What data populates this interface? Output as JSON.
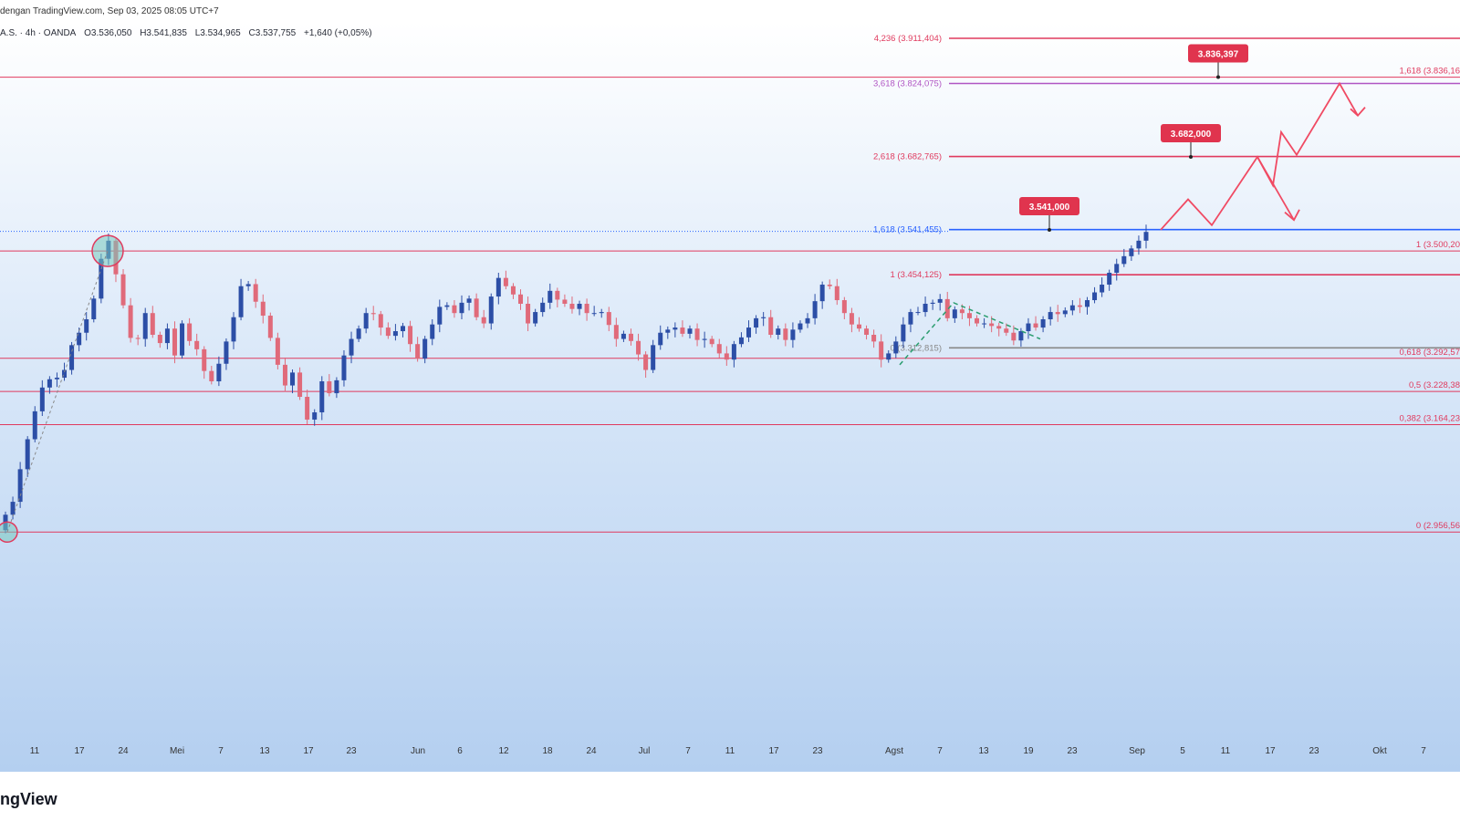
{
  "header": {
    "title": "dengan TradingView.com, Sep 03, 2025 08:05 UTC+7"
  },
  "symbol_bar": {
    "symbol": "A.S. · 4h · OANDA",
    "open": "O3.536,050",
    "high": "H3.541,835",
    "low": "L3.534,965",
    "close": "C3.537,755",
    "change": "+1,640 (+0,05%)"
  },
  "brand": "ngView",
  "colors": {
    "fib_line": "#e03a5e",
    "fib_ext_high": "#b055c4",
    "blue_line": "#2962ff",
    "up_candle": "#2c4ea6",
    "down_candle": "#e06a7a",
    "target_box": "#e0344e",
    "arrow": "#f04a63"
  },
  "chart_data": {
    "type": "candlestick",
    "timeframe": "4h",
    "y_unit": "price",
    "y_range": [
      2930,
      3960
    ],
    "x_ticks": [
      "11",
      "17",
      "24",
      "Mei",
      "7",
      "13",
      "17",
      "23",
      "Jun",
      "6",
      "12",
      "18",
      "24",
      "Jul",
      "7",
      "11",
      "17",
      "23",
      "Agst",
      "7",
      "13",
      "19",
      "23",
      "Sep",
      "5",
      "11",
      "17",
      "23",
      "Okt",
      "7"
    ],
    "fib_extension_labels": [
      {
        "level": "4,236",
        "price": 3911.404,
        "text": "4,236 (3.911,404)"
      },
      {
        "level": "3,618",
        "price": 3824.075,
        "text": "3,618 (3.824,075)"
      },
      {
        "level": "2,618",
        "price": 3682.765,
        "text": "2,618 (3.682,765)"
      },
      {
        "level": "1,618",
        "price": 3541.455,
        "text": "1,618 (3.541,455)"
      },
      {
        "level": "1",
        "price": 3454.125,
        "text": "1 (3.454,125)"
      },
      {
        "level": "0",
        "price": 3312.815,
        "text": "0 (3.312,815)"
      }
    ],
    "fib_retracement_labels": [
      {
        "level": "1,618",
        "price": 3836.16,
        "text": "1,618 (3.836,16"
      },
      {
        "level": "1",
        "price": 3500.2,
        "text": "1 (3.500,20"
      },
      {
        "level": "0,618",
        "price": 3292.57,
        "text": "0,618 (3.292,57"
      },
      {
        "level": "0,5",
        "price": 3228.38,
        "text": "0,5 (3.228,38"
      },
      {
        "level": "0,382",
        "price": 3164.23,
        "text": "0,382 (3.164,23"
      },
      {
        "level": "0",
        "price": 2956.56,
        "text": "0 (2.956,56"
      }
    ],
    "targets": [
      "3.541,000",
      "3.682,000",
      "3.836,397"
    ],
    "projected_path": [
      {
        "time": "Sep 3",
        "price": 3541
      },
      {
        "time": "Sep 6",
        "price": 3600
      },
      {
        "time": "Sep 9",
        "price": 3550
      },
      {
        "time": "Sep 17",
        "price": 3682
      },
      {
        "time": "Sep 20",
        "price": 3627
      },
      {
        "time": "Sep 21",
        "price": 3730
      },
      {
        "time": "Sep 23",
        "price": 3686
      },
      {
        "time": "Sep 30",
        "price": 3824
      },
      {
        "time": "Okt 3",
        "price": 3762
      }
    ],
    "closes": [
      2990,
      3015,
      3078,
      3136,
      3190,
      3236,
      3252,
      3255,
      3270,
      3318,
      3342,
      3368,
      3408,
      3485,
      3520,
      3455,
      3395,
      3332,
      3330,
      3380,
      3338,
      3322,
      3350,
      3298,
      3360,
      3326,
      3310,
      3268,
      3248,
      3282,
      3325,
      3372,
      3432,
      3436,
      3402,
      3375,
      3332,
      3280,
      3240,
      3265,
      3218,
      3174,
      3188,
      3248,
      3225,
      3250,
      3298,
      3330,
      3350,
      3380,
      3378,
      3352,
      3336,
      3345,
      3355,
      3320,
      3292,
      3330,
      3358,
      3392,
      3395,
      3380,
      3400,
      3408,
      3372,
      3360,
      3412,
      3448,
      3432,
      3416,
      3398,
      3360,
      3382,
      3400,
      3423,
      3406,
      3398,
      3388,
      3398,
      3380,
      3380,
      3382,
      3357,
      3330,
      3340,
      3326,
      3300,
      3270,
      3318,
      3342,
      3348,
      3352,
      3340,
      3350,
      3328,
      3330,
      3320,
      3302,
      3290,
      3320,
      3333,
      3352,
      3370,
      3372,
      3338,
      3350,
      3328,
      3348,
      3360,
      3370,
      3403,
      3435,
      3432,
      3405,
      3380,
      3358,
      3350,
      3338,
      3325,
      3290,
      3302,
      3325,
      3358,
      3382,
      3382,
      3398,
      3400,
      3407,
      3370,
      3387,
      3380,
      3370,
      3360,
      3360,
      3355,
      3350,
      3342,
      3327,
      3345,
      3360,
      3352,
      3368,
      3382,
      3378,
      3385,
      3395,
      3392,
      3405,
      3420,
      3435,
      3458,
      3475,
      3490,
      3505,
      3520,
      3537
    ]
  }
}
